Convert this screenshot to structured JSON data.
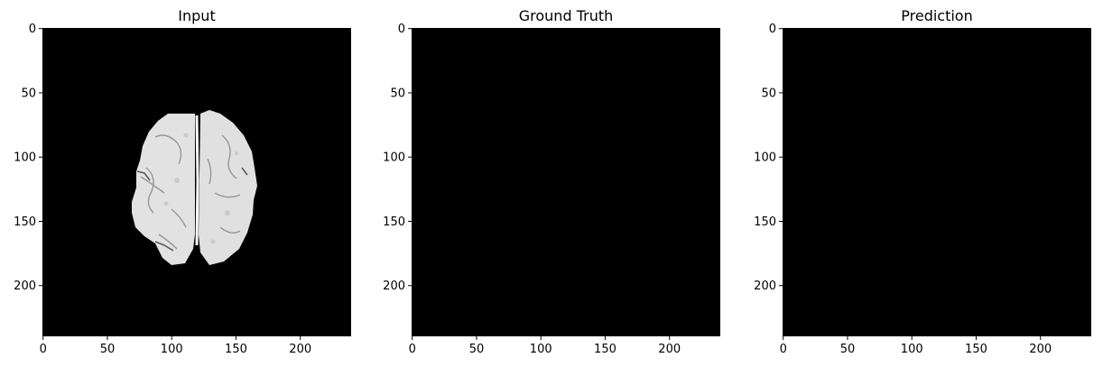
{
  "panels": [
    {
      "title": "Input",
      "content": "brain-slice",
      "x_ticks": [
        "0",
        "50",
        "100",
        "150",
        "200"
      ],
      "y_ticks": [
        "0",
        "50",
        "100",
        "150",
        "200"
      ]
    },
    {
      "title": "Ground Truth",
      "content": "empty-mask",
      "x_ticks": [
        "0",
        "50",
        "100",
        "150",
        "200"
      ],
      "y_ticks": [
        "0",
        "50",
        "100",
        "150",
        "200"
      ]
    },
    {
      "title": "Prediction",
      "content": "empty-mask",
      "x_ticks": [
        "0",
        "50",
        "100",
        "150",
        "200"
      ],
      "y_ticks": [
        "0",
        "50",
        "100",
        "150",
        "200"
      ]
    }
  ],
  "image_extent": [
    0,
    240
  ],
  "tick_values": [
    0,
    50,
    100,
    150,
    200
  ],
  "colors": {
    "background": "#000000",
    "tissue": "#e6e6e6",
    "tissue_dark": "#7a7a7a"
  }
}
